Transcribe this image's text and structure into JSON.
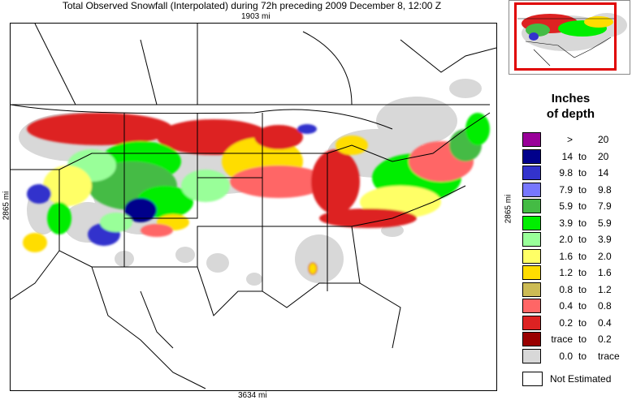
{
  "title": "Total Observed Snowfall (Interpolated) during 72h preceding 2009 December 8, 12:00 Z",
  "distances": {
    "top": "1903 mi",
    "bottom": "3634 mi",
    "left": "2865 mi",
    "right": "2865 mi"
  },
  "legend": {
    "title_line1": "Inches",
    "title_line2": "of depth",
    "items": [
      {
        "lo": ">",
        "to": "",
        "hi": "20",
        "color": "#990099"
      },
      {
        "lo": "14",
        "to": "to",
        "hi": "20",
        "color": "#00008b"
      },
      {
        "lo": "9.8",
        "to": "to",
        "hi": "14",
        "color": "#3333cc"
      },
      {
        "lo": "7.9",
        "to": "to",
        "hi": "9.8",
        "color": "#7777ff"
      },
      {
        "lo": "5.9",
        "to": "to",
        "hi": "7.9",
        "color": "#44bb44"
      },
      {
        "lo": "3.9",
        "to": "to",
        "hi": "5.9",
        "color": "#00ee00"
      },
      {
        "lo": "2.0",
        "to": "to",
        "hi": "3.9",
        "color": "#99ff99"
      },
      {
        "lo": "1.6",
        "to": "to",
        "hi": "2.0",
        "color": "#ffff66"
      },
      {
        "lo": "1.2",
        "to": "to",
        "hi": "1.6",
        "color": "#ffdd00"
      },
      {
        "lo": "0.8",
        "to": "to",
        "hi": "1.2",
        "color": "#ccbb55"
      },
      {
        "lo": "0.4",
        "to": "to",
        "hi": "0.8",
        "color": "#ff6666"
      },
      {
        "lo": "0.2",
        "to": "to",
        "hi": "0.4",
        "color": "#dd2222"
      },
      {
        "lo": "trace",
        "to": "to",
        "hi": "0.2",
        "color": "#990000"
      },
      {
        "lo": "0.0",
        "to": "to",
        "hi": "trace",
        "color": "#d8d8d8"
      }
    ],
    "not_estimated": {
      "label": "Not Estimated",
      "color": "#ffffff"
    }
  },
  "inset_frame_color": "#e00000"
}
